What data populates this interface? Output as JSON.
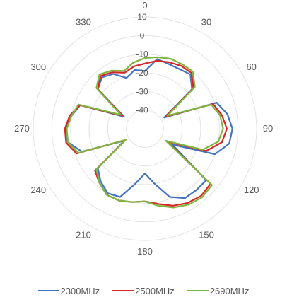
{
  "chart_data": {
    "type": "polar-line",
    "angle_ticks": [
      0,
      30,
      60,
      90,
      120,
      150,
      180,
      210,
      240,
      270,
      300,
      330
    ],
    "radial_ticks": [
      10,
      0,
      -10,
      -20,
      -30,
      -40
    ],
    "rlim": [
      -50,
      10
    ],
    "grid": true,
    "legend_position": "bottom",
    "angle_direction": "clockwise",
    "zero_at": "top",
    "angles": [
      0,
      10,
      20,
      30,
      40,
      50,
      60,
      70,
      80,
      90,
      100,
      110,
      120,
      130,
      140,
      150,
      160,
      170,
      180,
      190,
      200,
      210,
      220,
      230,
      240,
      250,
      260,
      270,
      280,
      290,
      300,
      310,
      320,
      330,
      340,
      350
    ],
    "series": [
      {
        "name": "2300MHz",
        "color": "#4472C4",
        "values": [
          -19,
          -12,
          -13,
          -13,
          -12,
          -17,
          -38,
          -9,
          -5,
          -3,
          -4,
          -10,
          -33,
          -7,
          -7,
          -7,
          -11,
          -20,
          -26,
          -20,
          -11,
          -10,
          -13,
          -17,
          -37,
          -14,
          -8,
          -7,
          -10,
          -13,
          -37,
          -17,
          -14,
          -16,
          -21,
          -18
        ]
      },
      {
        "name": "2500MHz",
        "color": "#D62728",
        "values": [
          -15,
          -13,
          -12,
          -11,
          -11,
          -16,
          -37,
          -11,
          -8,
          -6,
          -8,
          -15,
          -36,
          -4,
          -3,
          -4,
          -6,
          -9,
          -11,
          -10,
          -9,
          -9,
          -12,
          -15,
          -38,
          -11,
          -7,
          -7,
          -9,
          -13,
          -36,
          -17,
          -13,
          -15,
          -18,
          -16
        ]
      },
      {
        "name": "2690MHz",
        "color": "#7DB53D",
        "values": [
          -12,
          -11,
          -10,
          -10,
          -10,
          -15,
          -36,
          -12,
          -9,
          -8,
          -10,
          -17,
          -37,
          -3,
          -2,
          -3,
          -5,
          -8,
          -11,
          -10,
          -9,
          -9,
          -12,
          -16,
          -38,
          -12,
          -8,
          -8,
          -10,
          -12,
          -35,
          -16,
          -12,
          -14,
          -17,
          -14
        ]
      }
    ]
  }
}
